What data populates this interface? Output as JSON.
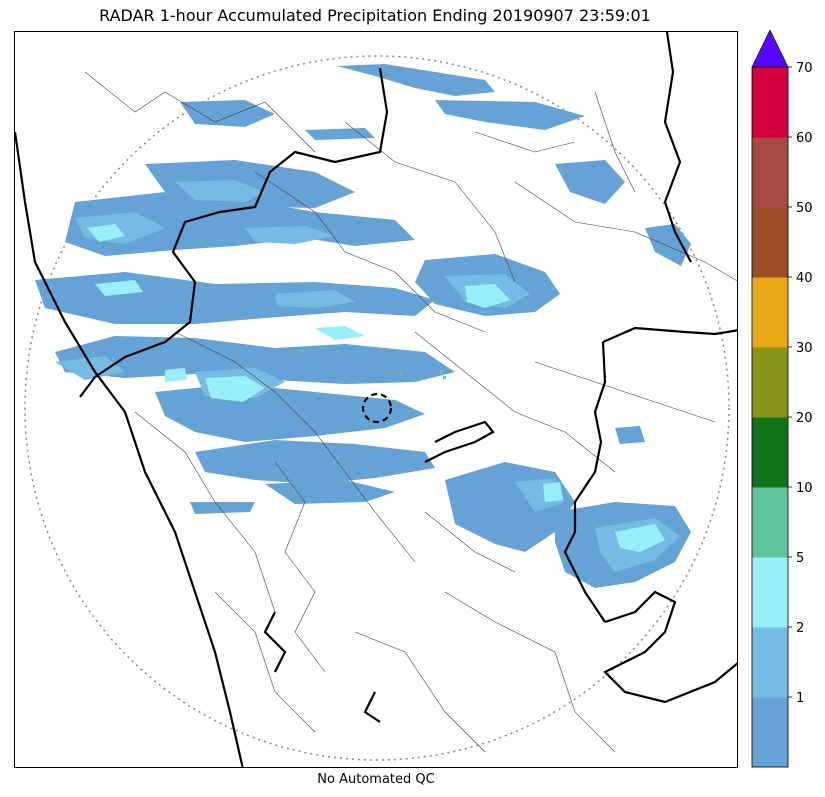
{
  "title": "RADAR 1-hour Accumulated Precipitation Ending 20190907 23:59:01",
  "caption": "No Automated QC",
  "colorbar": {
    "levels": [
      {
        "color": "#65a3d6"
      },
      {
        "label": "1",
        "color": "#76bbe4"
      },
      {
        "label": "2",
        "color": "#98eefb"
      },
      {
        "label": "5",
        "color": "#5fc49d"
      },
      {
        "label": "10",
        "color": "#11721a"
      },
      {
        "label": "20",
        "color": "#899316"
      },
      {
        "label": "30",
        "color": "#e8a919"
      },
      {
        "label": "40",
        "color": "#9b4f26"
      },
      {
        "label": "50",
        "color": "#a64a45"
      },
      {
        "label": "60",
        "color": "#d50040"
      },
      {
        "label": "70",
        "color": "#5506fd"
      }
    ],
    "extend_color": "#5506fd"
  },
  "map": {
    "rain_colors": {
      "light": "#65a3d6",
      "moderate": "#76bbe4",
      "heavy": "#98eefb",
      "intense": "#5fc49d"
    },
    "range_ring_color": "#888888"
  }
}
